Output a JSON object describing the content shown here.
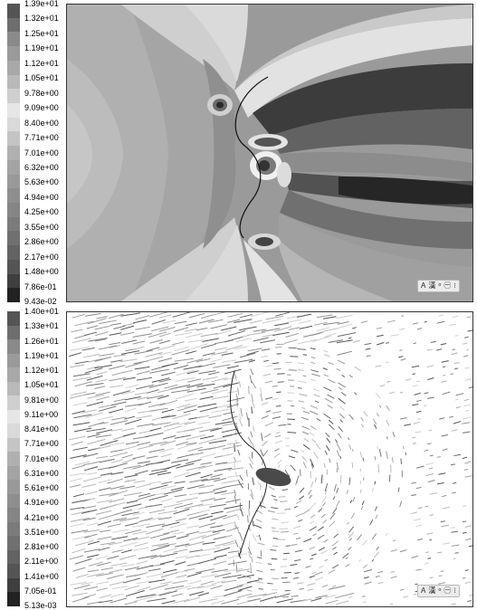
{
  "panels": [
    {
      "legend": {
        "labels": [
          "1.39e+01",
          "1.32e+01",
          "1.25e+01",
          "1.19e+01",
          "1.12e+01",
          "1.05e+01",
          "9.78e+00",
          "9.09e+00",
          "8.40e+00",
          "7.71e+00",
          "7.01e+00",
          "6.32e+00",
          "5.63e+00",
          "4.94e+00",
          "4.25e+00",
          "3.55e+00",
          "2.86e+00",
          "2.17e+00",
          "1.48e+00",
          "7.86e-01",
          "9.43e-02"
        ],
        "colors": [
          "#555555",
          "#6e6e6e",
          "#8a8a8a",
          "#9a9a9a",
          "#a8a8a8",
          "#b9b9b9",
          "#cfcfcf",
          "#e6e6e6",
          "#d9d9d9",
          "#c4c4c4",
          "#b0b0b0",
          "#a3a3a3",
          "#999999",
          "#8e8e8e",
          "#858585",
          "#7b7b7b",
          "#707070",
          "#636363",
          "#555555",
          "#3f3f3f",
          "#222222"
        ]
      },
      "ime_toolbar": {
        "glyphs": [
          "A",
          "漢",
          "ᵒ",
          "㊀",
          "⁝"
        ]
      }
    },
    {
      "legend": {
        "labels": [
          "1.40e+01",
          "1.33e+01",
          "1.26e+01",
          "1.19e+01",
          "1.12e+01",
          "1.05e+01",
          "9.81e+00",
          "9.11e+00",
          "8.41e+00",
          "7.71e+00",
          "7.01e+00",
          "6.31e+00",
          "5.61e+00",
          "4.91e+00",
          "4.21e+00",
          "3.51e+00",
          "2.81e+00",
          "2.11e+00",
          "1.41e+00",
          "7.05e-01",
          "5.13e-03"
        ],
        "colors": [
          "#555555",
          "#6e6e6e",
          "#8a8a8a",
          "#9a9a9a",
          "#a8a8a8",
          "#b9b9b9",
          "#cfcfcf",
          "#e6e6e6",
          "#d9d9d9",
          "#c4c4c4",
          "#b0b0b0",
          "#a3a3a3",
          "#999999",
          "#8e8e8e",
          "#858585",
          "#7b7b7b",
          "#707070",
          "#636363",
          "#555555",
          "#3f3f3f",
          "#222222"
        ]
      },
      "ime_toolbar": {
        "glyphs": [
          "A",
          "漢",
          "ᵒ",
          "㊀",
          "⁝"
        ]
      }
    }
  ]
}
